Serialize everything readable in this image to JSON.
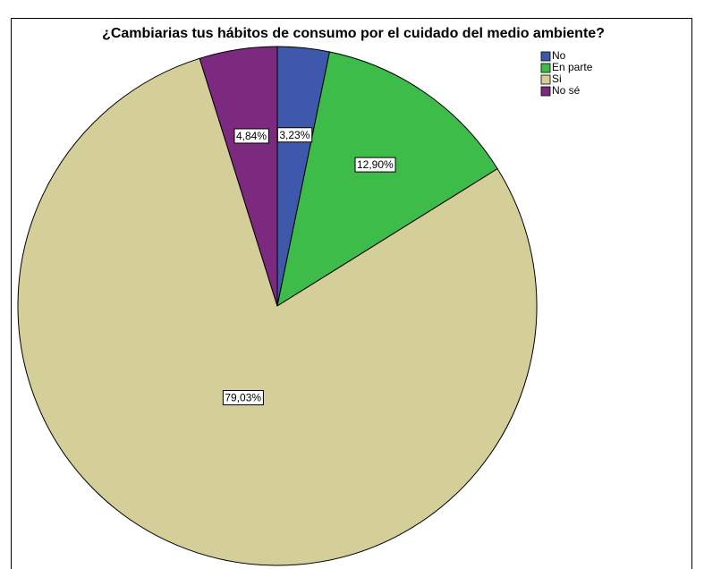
{
  "chart_data": {
    "type": "pie",
    "title": "¿Cambiarias tus hábitos de consumo por el cuidado del medio ambiente?",
    "categories": [
      "No",
      "En parte",
      "Si",
      "No sé"
    ],
    "values": [
      3.23,
      12.9,
      79.03,
      4.84
    ],
    "value_labels": [
      "3,23%",
      "12,90%",
      "79,03%",
      "4,84%"
    ],
    "colors": [
      "#3e58ac",
      "#3dbc4a",
      "#d4ce98",
      "#7b2a80"
    ],
    "legend": "top-right"
  }
}
